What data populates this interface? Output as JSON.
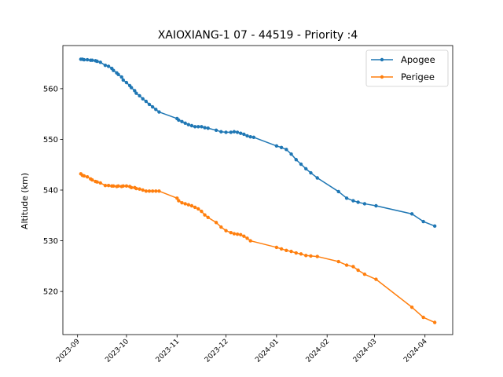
{
  "chart_data": {
    "type": "line",
    "title": "XAIOXIANG-1 07 - 44519 - Priority :4",
    "xlabel": "",
    "ylabel": "Altitude (km)",
    "xlim": [
      "2023-08-23",
      "2024-04-18"
    ],
    "ylim": [
      511.5,
      568.5
    ],
    "x_ticks": [
      "2023-09",
      "2023-10",
      "2023-11",
      "2023-12",
      "2024-01",
      "2024-02",
      "2024-03",
      "2024-04"
    ],
    "y_ticks": [
      520,
      530,
      540,
      550,
      560
    ],
    "grid": false,
    "legend_position": "top-right",
    "colors": {
      "apogee": "#1f77b4",
      "perigee": "#ff7f0e"
    },
    "series": [
      {
        "name": "Apogee",
        "color": "#1f77b4",
        "points": [
          [
            "2023-09-03",
            565.8
          ],
          [
            "2023-09-04",
            565.8
          ],
          [
            "2023-09-05",
            565.7
          ],
          [
            "2023-09-07",
            565.7
          ],
          [
            "2023-09-09",
            565.6
          ],
          [
            "2023-09-10",
            565.6
          ],
          [
            "2023-09-12",
            565.5
          ],
          [
            "2023-09-13",
            565.4
          ],
          [
            "2023-09-15",
            565.2
          ],
          [
            "2023-09-18",
            564.6
          ],
          [
            "2023-09-20",
            564.4
          ],
          [
            "2023-09-22",
            564.0
          ],
          [
            "2023-09-23",
            563.6
          ],
          [
            "2023-09-25",
            563.1
          ],
          [
            "2023-09-26",
            562.8
          ],
          [
            "2023-09-28",
            562.3
          ],
          [
            "2023-09-29",
            561.7
          ],
          [
            "2023-10-01",
            561.2
          ],
          [
            "2023-10-03",
            560.6
          ],
          [
            "2023-10-04",
            560.2
          ],
          [
            "2023-10-06",
            559.6
          ],
          [
            "2023-10-07",
            559.1
          ],
          [
            "2023-10-09",
            558.6
          ],
          [
            "2023-10-11",
            558.0
          ],
          [
            "2023-10-13",
            557.5
          ],
          [
            "2023-10-15",
            556.9
          ],
          [
            "2023-10-17",
            556.4
          ],
          [
            "2023-10-19",
            555.9
          ],
          [
            "2023-10-21",
            555.4
          ],
          [
            "2023-11-01",
            554.1
          ],
          [
            "2023-11-02",
            553.8
          ],
          [
            "2023-11-04",
            553.5
          ],
          [
            "2023-11-06",
            553.2
          ],
          [
            "2023-11-08",
            552.9
          ],
          [
            "2023-11-10",
            552.7
          ],
          [
            "2023-11-12",
            552.5
          ],
          [
            "2023-11-14",
            552.5
          ],
          [
            "2023-11-16",
            552.5
          ],
          [
            "2023-11-18",
            552.3
          ],
          [
            "2023-11-20",
            552.2
          ],
          [
            "2023-11-25",
            551.8
          ],
          [
            "2023-11-28",
            551.5
          ],
          [
            "2023-12-01",
            551.4
          ],
          [
            "2023-12-04",
            551.4
          ],
          [
            "2023-12-06",
            551.5
          ],
          [
            "2023-12-08",
            551.4
          ],
          [
            "2023-12-10",
            551.2
          ],
          [
            "2023-12-12",
            551.0
          ],
          [
            "2023-12-14",
            550.7
          ],
          [
            "2023-12-16",
            550.5
          ],
          [
            "2023-12-18",
            550.4
          ],
          [
            "2024-01-01",
            548.7
          ],
          [
            "2024-01-04",
            548.4
          ],
          [
            "2024-01-07",
            548.0
          ],
          [
            "2024-01-10",
            547.1
          ],
          [
            "2024-01-13",
            546.0
          ],
          [
            "2024-01-16",
            545.1
          ],
          [
            "2024-01-19",
            544.2
          ],
          [
            "2024-01-22",
            543.4
          ],
          [
            "2024-01-26",
            542.4
          ],
          [
            "2024-02-08",
            539.7
          ],
          [
            "2024-02-13",
            538.4
          ],
          [
            "2024-02-17",
            537.9
          ],
          [
            "2024-02-20",
            537.6
          ],
          [
            "2024-02-24",
            537.3
          ],
          [
            "2024-03-02",
            536.9
          ],
          [
            "2024-03-24",
            535.3
          ],
          [
            "2024-03-31",
            533.8
          ],
          [
            "2024-04-07",
            532.9
          ]
        ]
      },
      {
        "name": "Perigee",
        "color": "#ff7f0e",
        "points": [
          [
            "2023-09-03",
            543.2
          ],
          [
            "2023-09-04",
            542.9
          ],
          [
            "2023-09-05",
            542.8
          ],
          [
            "2023-09-07",
            542.6
          ],
          [
            "2023-09-09",
            542.2
          ],
          [
            "2023-09-10",
            542.0
          ],
          [
            "2023-09-12",
            541.7
          ],
          [
            "2023-09-13",
            541.6
          ],
          [
            "2023-09-15",
            541.4
          ],
          [
            "2023-09-18",
            540.9
          ],
          [
            "2023-09-20",
            540.9
          ],
          [
            "2023-09-22",
            540.8
          ],
          [
            "2023-09-23",
            540.8
          ],
          [
            "2023-09-25",
            540.7
          ],
          [
            "2023-09-26",
            540.8
          ],
          [
            "2023-09-28",
            540.7
          ],
          [
            "2023-09-29",
            540.8
          ],
          [
            "2023-10-01",
            540.8
          ],
          [
            "2023-10-03",
            540.7
          ],
          [
            "2023-10-04",
            540.5
          ],
          [
            "2023-10-06",
            540.5
          ],
          [
            "2023-10-07",
            540.3
          ],
          [
            "2023-10-09",
            540.2
          ],
          [
            "2023-10-11",
            540.0
          ],
          [
            "2023-10-13",
            539.8
          ],
          [
            "2023-10-15",
            539.8
          ],
          [
            "2023-10-17",
            539.8
          ],
          [
            "2023-10-19",
            539.8
          ],
          [
            "2023-10-21",
            539.8
          ],
          [
            "2023-11-01",
            538.4
          ],
          [
            "2023-11-02",
            537.9
          ],
          [
            "2023-11-04",
            537.5
          ],
          [
            "2023-11-06",
            537.3
          ],
          [
            "2023-11-08",
            537.1
          ],
          [
            "2023-11-10",
            536.9
          ],
          [
            "2023-11-12",
            536.6
          ],
          [
            "2023-11-14",
            536.3
          ],
          [
            "2023-11-16",
            535.8
          ],
          [
            "2023-11-18",
            535.1
          ],
          [
            "2023-11-20",
            534.6
          ],
          [
            "2023-11-25",
            533.6
          ],
          [
            "2023-11-28",
            532.7
          ],
          [
            "2023-12-01",
            532.0
          ],
          [
            "2023-12-04",
            531.6
          ],
          [
            "2023-12-06",
            531.4
          ],
          [
            "2023-12-08",
            531.3
          ],
          [
            "2023-12-10",
            531.2
          ],
          [
            "2023-12-12",
            530.9
          ],
          [
            "2023-12-14",
            530.5
          ],
          [
            "2023-12-16",
            530.0
          ],
          [
            "2024-01-01",
            528.7
          ],
          [
            "2024-01-04",
            528.4
          ],
          [
            "2024-01-07",
            528.1
          ],
          [
            "2024-01-10",
            527.9
          ],
          [
            "2024-01-13",
            527.6
          ],
          [
            "2024-01-16",
            527.4
          ],
          [
            "2024-01-19",
            527.1
          ],
          [
            "2024-01-22",
            527.0
          ],
          [
            "2024-01-26",
            526.9
          ],
          [
            "2024-02-08",
            525.9
          ],
          [
            "2024-02-13",
            525.2
          ],
          [
            "2024-02-17",
            524.9
          ],
          [
            "2024-02-20",
            524.2
          ],
          [
            "2024-02-24",
            523.4
          ],
          [
            "2024-03-02",
            522.4
          ],
          [
            "2024-03-24",
            516.9
          ],
          [
            "2024-03-31",
            514.9
          ],
          [
            "2024-04-07",
            513.9
          ]
        ]
      }
    ]
  }
}
